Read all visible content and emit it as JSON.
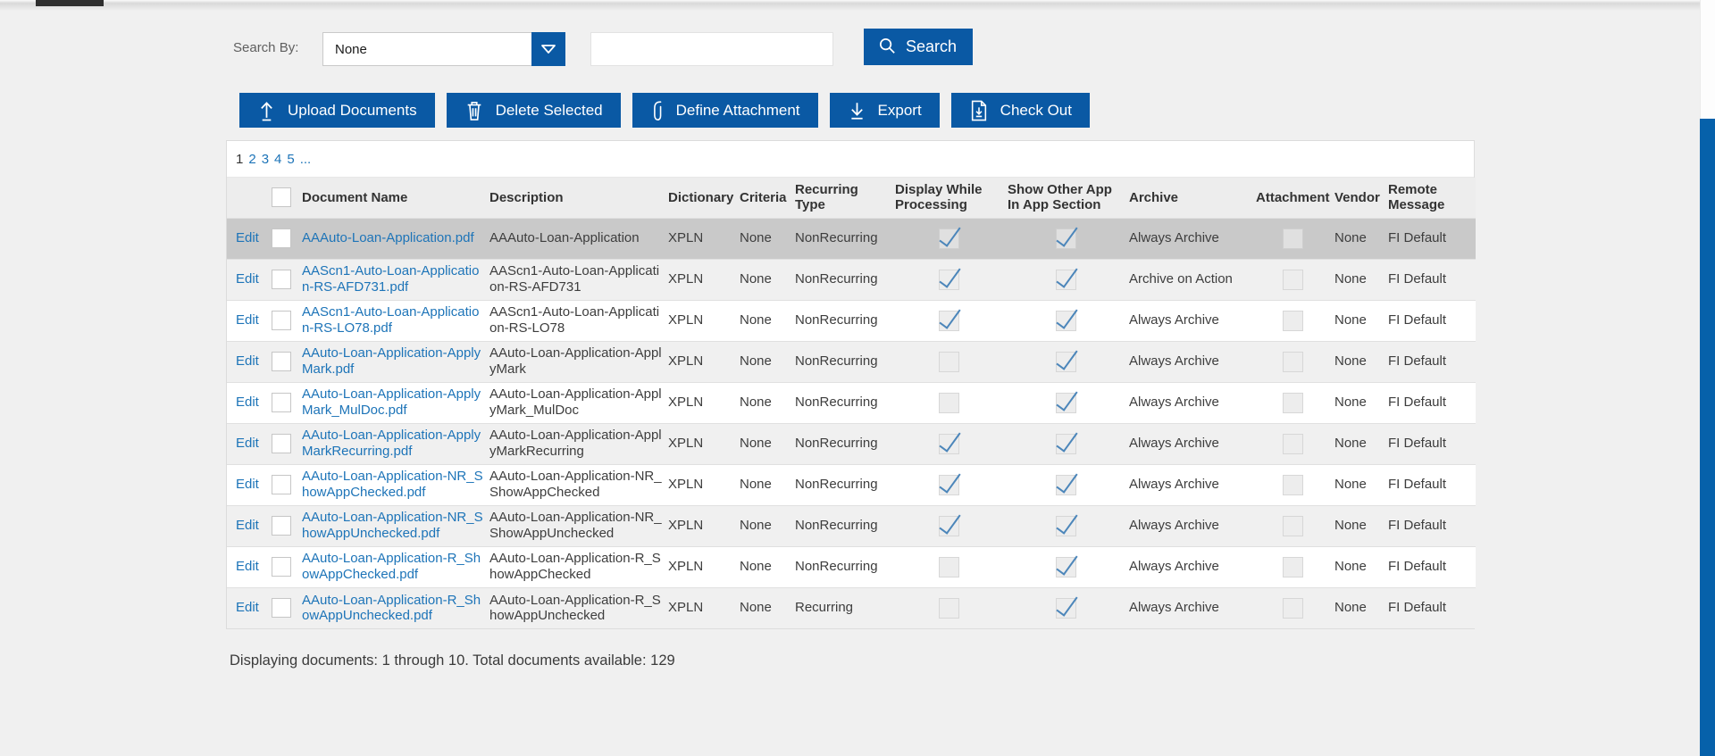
{
  "colors": {
    "accent_blue": "#0a59a4",
    "scrollbar_blue": "#0661aa",
    "link_blue": "#1d74b8",
    "selected_row": "#c9c9c9",
    "page_background": "#f0f0f0"
  },
  "search_bar": {
    "label": "Search By:",
    "dropdown_value": "None",
    "dropdown_icon": "chevron-down-icon",
    "input_value": "",
    "search_button_label": "Search",
    "search_button_icon": "magnifier-icon"
  },
  "toolbar": {
    "buttons": [
      {
        "label": "Upload Documents",
        "icon": "upload-icon"
      },
      {
        "label": "Delete Selected",
        "icon": "trash-icon"
      },
      {
        "label": "Define Attachment",
        "icon": "paperclip-icon"
      },
      {
        "label": "Export",
        "icon": "download-icon"
      },
      {
        "label": "Check Out",
        "icon": "checkout-document-icon"
      }
    ]
  },
  "pagination": {
    "current": "1",
    "pages": [
      "1",
      "2",
      "3",
      "4",
      "5",
      "..."
    ]
  },
  "table": {
    "edit_label": "Edit",
    "columns": [
      "",
      "",
      "Document Name",
      "Description",
      "Dictionary",
      "Criteria",
      "Recurring Type",
      "Display While Processing",
      "Show Other App In App Section",
      "Archive",
      "Attachment",
      "Vendor",
      "Remote Message"
    ],
    "rows": [
      {
        "document_name": "AAAuto-Loan-Application.pdf",
        "description": "AAAuto-Loan-Application",
        "dictionary": "XPLN",
        "criteria": "None",
        "recurring_type": "NonRecurring",
        "display_while_processing": true,
        "show_other_app": true,
        "archive": "Always Archive",
        "attachment": false,
        "vendor": "None",
        "remote_message": "FI Default",
        "selected": true
      },
      {
        "document_name": "AAScn1-Auto-Loan-Application-RS-AFD731.pdf",
        "description": "AAScn1-Auto-Loan-Application-RS-AFD731",
        "dictionary": "XPLN",
        "criteria": "None",
        "recurring_type": "NonRecurring",
        "display_while_processing": true,
        "show_other_app": true,
        "archive": "Archive on Action",
        "attachment": false,
        "vendor": "None",
        "remote_message": "FI Default",
        "selected": false
      },
      {
        "document_name": "AAScn1-Auto-Loan-Application-RS-LO78.pdf",
        "description": "AAScn1-Auto-Loan-Application-RS-LO78",
        "dictionary": "XPLN",
        "criteria": "None",
        "recurring_type": "NonRecurring",
        "display_while_processing": true,
        "show_other_app": true,
        "archive": "Always Archive",
        "attachment": false,
        "vendor": "None",
        "remote_message": "FI Default",
        "selected": false
      },
      {
        "document_name": "AAuto-Loan-Application-ApplyMark.pdf",
        "description": "AAuto-Loan-Application-ApplyMark",
        "dictionary": "XPLN",
        "criteria": "None",
        "recurring_type": "NonRecurring",
        "display_while_processing": false,
        "show_other_app": true,
        "archive": "Always Archive",
        "attachment": false,
        "vendor": "None",
        "remote_message": "FI Default",
        "selected": false
      },
      {
        "document_name": "AAuto-Loan-Application-ApplyMark_MulDoc.pdf",
        "description": "AAuto-Loan-Application-ApplyMark_MulDoc",
        "dictionary": "XPLN",
        "criteria": "None",
        "recurring_type": "NonRecurring",
        "display_while_processing": false,
        "show_other_app": true,
        "archive": "Always Archive",
        "attachment": false,
        "vendor": "None",
        "remote_message": "FI Default",
        "selected": false
      },
      {
        "document_name": "AAuto-Loan-Application-ApplyMarkRecurring.pdf",
        "description": "AAuto-Loan-Application-ApplyMarkRecurring",
        "dictionary": "XPLN",
        "criteria": "None",
        "recurring_type": "NonRecurring",
        "display_while_processing": true,
        "show_other_app": true,
        "archive": "Always Archive",
        "attachment": false,
        "vendor": "None",
        "remote_message": "FI Default",
        "selected": false
      },
      {
        "document_name": "AAuto-Loan-Application-NR_ShowAppChecked.pdf",
        "description": "AAuto-Loan-Application-NR_ShowAppChecked",
        "dictionary": "XPLN",
        "criteria": "None",
        "recurring_type": "NonRecurring",
        "display_while_processing": true,
        "show_other_app": true,
        "archive": "Always Archive",
        "attachment": false,
        "vendor": "None",
        "remote_message": "FI Default",
        "selected": false
      },
      {
        "document_name": "AAuto-Loan-Application-NR_ShowAppUnchecked.pdf",
        "description": "AAuto-Loan-Application-NR_ShowAppUnchecked",
        "dictionary": "XPLN",
        "criteria": "None",
        "recurring_type": "NonRecurring",
        "display_while_processing": true,
        "show_other_app": true,
        "archive": "Always Archive",
        "attachment": false,
        "vendor": "None",
        "remote_message": "FI Default",
        "selected": false
      },
      {
        "document_name": "AAuto-Loan-Application-R_ShowAppChecked.pdf",
        "description": "AAuto-Loan-Application-R_ShowAppChecked",
        "dictionary": "XPLN",
        "criteria": "None",
        "recurring_type": "NonRecurring",
        "display_while_processing": false,
        "show_other_app": true,
        "archive": "Always Archive",
        "attachment": false,
        "vendor": "None",
        "remote_message": "FI Default",
        "selected": false
      },
      {
        "document_name": "AAuto-Loan-Application-R_ShowAppUnchecked.pdf",
        "description": "AAuto-Loan-Application-R_ShowAppUnchecked",
        "dictionary": "XPLN",
        "criteria": "None",
        "recurring_type": "Recurring",
        "display_while_processing": false,
        "show_other_app": true,
        "archive": "Always Archive",
        "attachment": false,
        "vendor": "None",
        "remote_message": "FI Default",
        "selected": false
      }
    ]
  },
  "footer": {
    "summary": "Displaying documents: 1 through 10. Total documents available: 129"
  }
}
